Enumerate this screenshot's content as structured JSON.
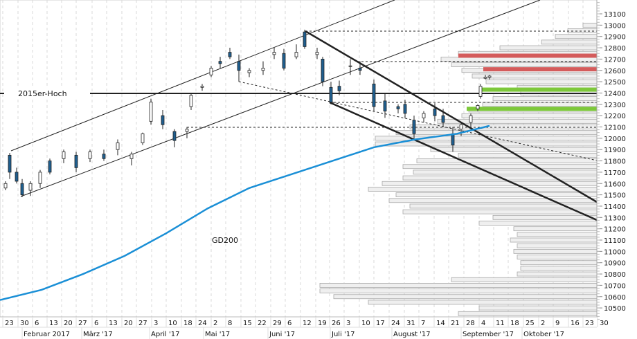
{
  "chart_data": {
    "type": "candlestick",
    "title": "",
    "instrument_hint": "DAX daily candles Jan–Oct 2017 with volume profile",
    "y_axis": {
      "ticks": [
        13100,
        13000,
        12900,
        12800,
        12700,
        12600,
        12500,
        12400,
        12300,
        12200,
        12100,
        12000,
        11900,
        11800,
        11700,
        11600,
        11500,
        11400,
        11300,
        11200,
        11100,
        11000,
        10900,
        10800,
        10700,
        10600,
        10500
      ],
      "ylim": [
        10400,
        13200
      ],
      "position": "right"
    },
    "x_axis": {
      "day_ticks": [
        "23",
        "30",
        "6",
        "13",
        "20",
        "27",
        "6",
        "13",
        "20",
        "27",
        "3",
        "10",
        "18",
        "24",
        "2",
        "8",
        "15",
        "22",
        "29",
        "6",
        "12",
        "19",
        "26",
        "3",
        "10",
        "17",
        "24",
        "31",
        "7",
        "14",
        "21",
        "28",
        "4",
        "11",
        "18",
        "25",
        "2",
        "9",
        "16",
        "23",
        "30"
      ],
      "month_labels": [
        "Februar 2017",
        "März '17",
        "April '17",
        "Mai '17",
        "Juni '17",
        "Juli '17",
        "August '17",
        "September '17",
        "Oktober '17"
      ]
    },
    "annotations": [
      {
        "type": "hline",
        "label": "2015er-Hoch",
        "value": 12390
      },
      {
        "type": "text",
        "label": "GD200",
        "series": "SMA200"
      }
    ],
    "series": [
      {
        "name": "GD200",
        "type": "line",
        "color": "#1a8fd6",
        "points": [
          [
            0,
            10570
          ],
          [
            60,
            10660
          ],
          [
            120,
            10800
          ],
          [
            180,
            10960
          ],
          [
            240,
            11160
          ],
          [
            300,
            11380
          ],
          [
            360,
            11560
          ],
          [
            420,
            11680
          ],
          [
            480,
            11800
          ],
          [
            540,
            11920
          ],
          [
            600,
            11990
          ],
          [
            660,
            12040
          ],
          [
            707,
            12110
          ]
        ]
      }
    ],
    "levels": {
      "resistance_red": [
        12730,
        12610
      ],
      "support_green": [
        12430,
        12260
      ],
      "dashed": [
        12950,
        12680,
        12330,
        12110
      ]
    },
    "volume_profile_note": "horizontal gray bars from right edge, one per price bucket"
  },
  "labels": {
    "high_2015": "2015er-Hoch",
    "gd200": "GD200"
  },
  "colors": {
    "sma": "#1a8fd6",
    "bear_candle": "#1f5f8f",
    "red_zone": "#d45b5b",
    "green_zone": "#7dc83a",
    "profile_fill": "#efefef",
    "profile_stroke": "#a8a8a8",
    "grid": "#d8d8d8"
  }
}
